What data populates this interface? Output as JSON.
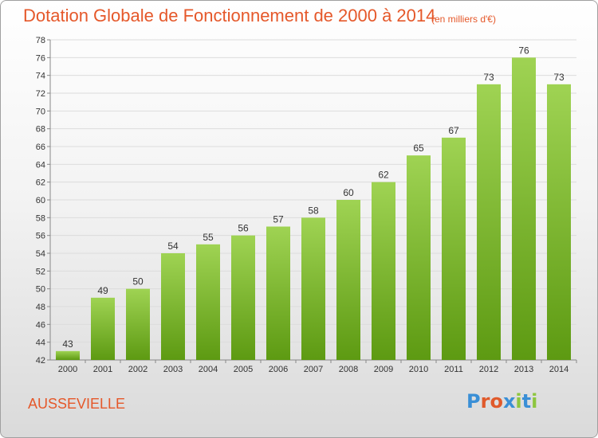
{
  "header": {
    "title": "Dotation Globale de Fonctionnement de 2000 à 2014",
    "subtitle": "(en milliers d'€)"
  },
  "footer": {
    "commune": "AUSSEVIELLE",
    "logo": {
      "text": "Proxiti",
      "letter_colors": [
        "#3a8fd6",
        "#e05a2b",
        "#e05a2b",
        "#3a8fd6",
        "#8dc63f",
        "#3a8fd6",
        "#8dc63f"
      ]
    }
  },
  "colors": {
    "accent": "#e5582a",
    "bar_light": "#9fd353",
    "bar_dark": "#5d9a12",
    "grid": "#dcdcdc",
    "axis": "#888888"
  },
  "chart_data": {
    "type": "bar",
    "categories": [
      "2000",
      "2001",
      "2002",
      "2003",
      "2004",
      "2005",
      "2006",
      "2007",
      "2008",
      "2009",
      "2010",
      "2011",
      "2012",
      "2013",
      "2014"
    ],
    "values": [
      43,
      49,
      50,
      54,
      55,
      56,
      57,
      58,
      60,
      62,
      65,
      67,
      73,
      76,
      73
    ],
    "title": "Dotation Globale de Fonctionnement de 2000 à 2014",
    "subtitle": "(en milliers d'€)",
    "xlabel": "",
    "ylabel": "",
    "ylim": [
      42,
      78
    ],
    "yticks": [
      42,
      44,
      46,
      48,
      50,
      52,
      54,
      56,
      58,
      60,
      62,
      64,
      66,
      68,
      70,
      72,
      74,
      76,
      78
    ],
    "grid": true,
    "data_labels": true,
    "legend": "none"
  }
}
